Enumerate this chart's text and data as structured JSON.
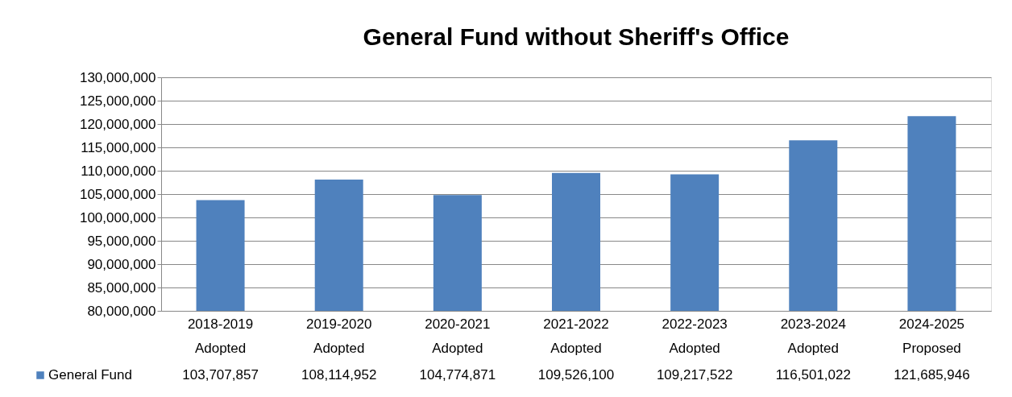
{
  "chart_data": {
    "type": "bar",
    "title": "General Fund without Sheriff's Office",
    "categories": [
      "2018-2019 Adopted",
      "2019-2020 Adopted",
      "2020-2021 Adopted",
      "2021-2022 Adopted",
      "2022-2023 Adopted",
      "2023-2024 Adopted",
      "2024-2025 Proposed"
    ],
    "series": [
      {
        "name": "General Fund",
        "color": "#4f81bd",
        "values": [
          103707857,
          108114952,
          104774871,
          109526100,
          109217522,
          116501022,
          121685946
        ],
        "value_labels": [
          "103,707,857",
          "108,114,952",
          "104,774,871",
          "109,526,100",
          "109,217,522",
          "116,501,022",
          "121,685,946"
        ]
      }
    ],
    "ylim": [
      80000000,
      130000000
    ],
    "yticks": [
      {
        "value": 80000000,
        "label": "80,000,000"
      },
      {
        "value": 85000000,
        "label": "85,000,000"
      },
      {
        "value": 90000000,
        "label": "90,000,000"
      },
      {
        "value": 95000000,
        "label": "95,000,000"
      },
      {
        "value": 100000000,
        "label": "100,000,000"
      },
      {
        "value": 105000000,
        "label": "105,000,000"
      },
      {
        "value": 110000000,
        "label": "110,000,000"
      },
      {
        "value": 115000000,
        "label": "115,000,000"
      },
      {
        "value": 120000000,
        "label": "120,000,000"
      },
      {
        "value": 125000000,
        "label": "125,000,000"
      },
      {
        "value": 130000000,
        "label": "130,000,000"
      }
    ],
    "grid": "y",
    "legend": "bottom left"
  }
}
